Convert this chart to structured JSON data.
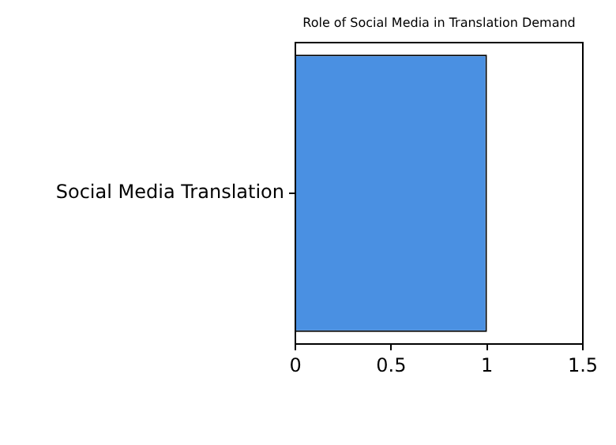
{
  "chart_data": {
    "type": "bar",
    "orientation": "horizontal",
    "title": "Role of Social Media in Translation Demand",
    "categories": [
      "Social Media Translation"
    ],
    "values": [
      1
    ],
    "color": "#4a90e2",
    "xlim": [
      0,
      1.5
    ],
    "xticks": [
      0,
      0.5,
      1,
      1.5
    ],
    "grid": false,
    "legend": false
  }
}
